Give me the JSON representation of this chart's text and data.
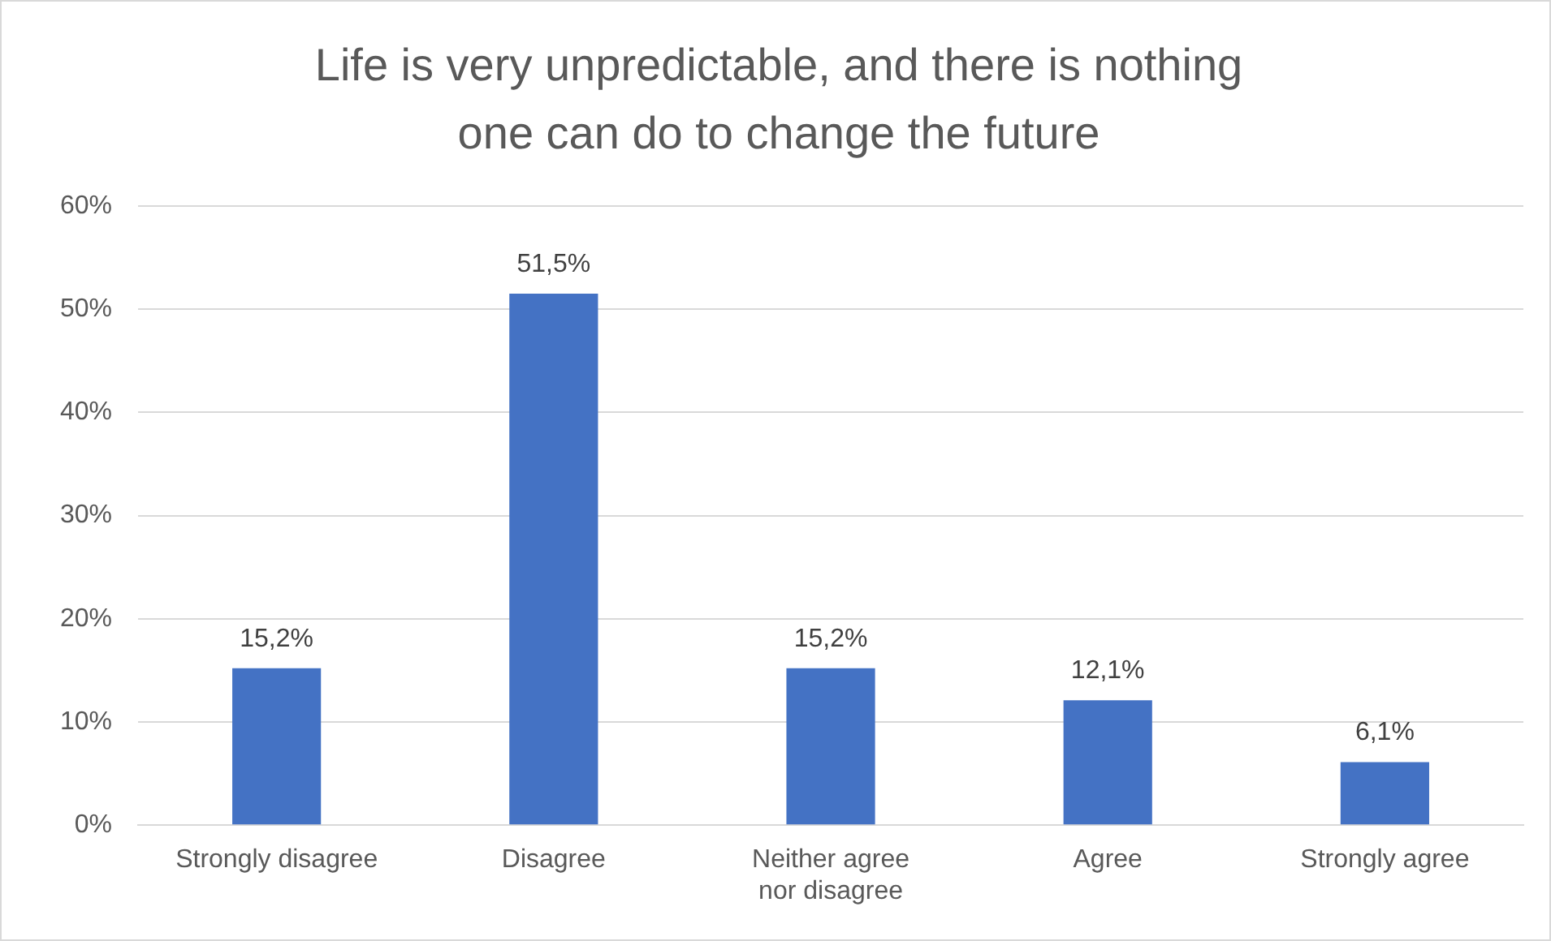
{
  "chart_data": {
    "type": "bar",
    "title": "Life is very unpredictable, and there is nothing one can do to change the future",
    "categories": [
      "Strongly disagree",
      "Disagree",
      "Neither agree nor disagree",
      "Agree",
      "Strongly agree"
    ],
    "values": [
      15.2,
      51.5,
      15.2,
      12.1,
      6.1
    ],
    "value_labels": [
      "15,2%",
      "51,5%",
      "15,2%",
      "12,1%",
      "6,1%"
    ],
    "color": "#4472c4",
    "ylim": [
      0,
      60
    ],
    "yticks": [
      {
        "value": 0,
        "label": "0%"
      },
      {
        "value": 10,
        "label": "10%"
      },
      {
        "value": 20,
        "label": "20%"
      },
      {
        "value": 30,
        "label": "30%"
      },
      {
        "value": 40,
        "label": "40%"
      },
      {
        "value": 50,
        "label": "50%"
      },
      {
        "value": 60,
        "label": "60%"
      }
    ],
    "grid": "y",
    "legend": false
  }
}
